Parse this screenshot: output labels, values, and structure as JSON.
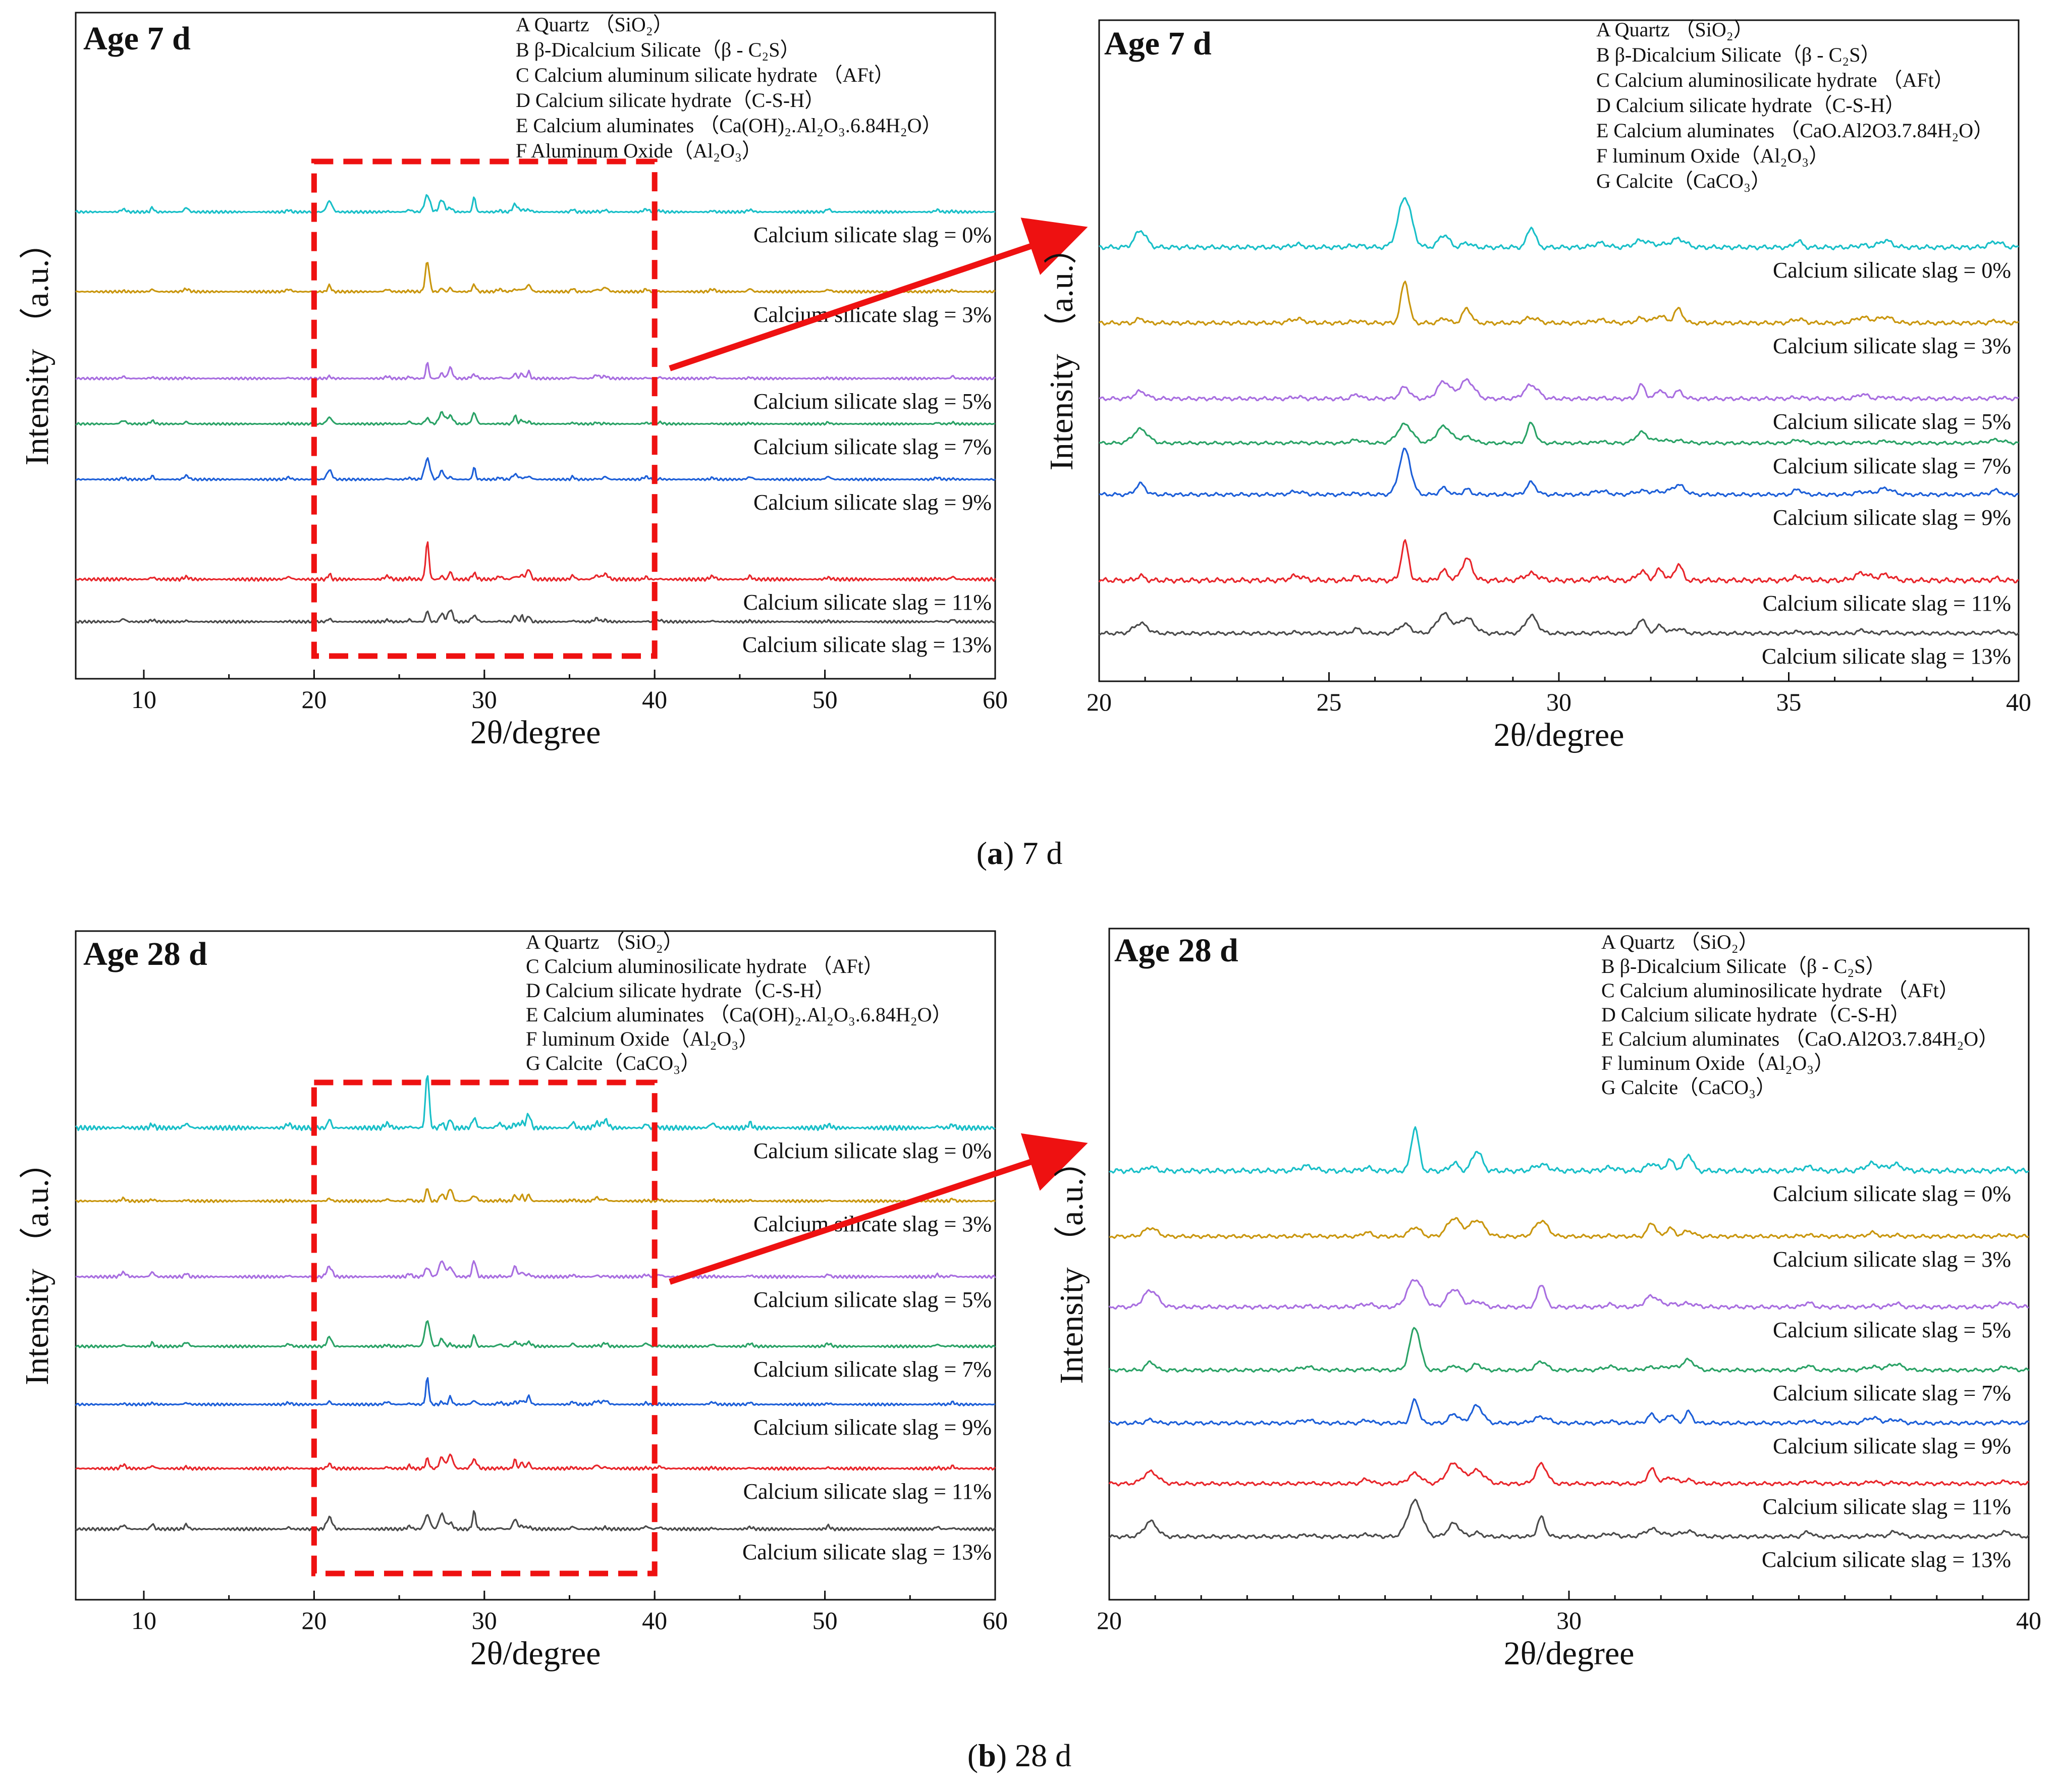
{
  "colors": {
    "series": [
      "#19bfc8",
      "#c9960e",
      "#a86ee0",
      "#2aa266",
      "#1d5fd8",
      "#e8262b",
      "#4a4a4a"
    ],
    "zoom_box": "#ee1111",
    "arrow": "#ee1111"
  },
  "captions": {
    "a_label": "(a)",
    "a_letter": "a",
    "a_text": "7 d",
    "b_label": "(b)",
    "b_letter": "b",
    "b_text": "28 d"
  },
  "chart_data": [
    {
      "id": "7d-full",
      "type": "line",
      "title": "Age 7 d",
      "xlabel": "2θ/degree",
      "ylabel": "Intensity （a.u.）",
      "xlim": [
        6,
        60
      ],
      "xticks": [
        "10",
        "20",
        "30",
        "40",
        "50",
        "60"
      ],
      "legend": [
        "A Quartz （SiO₂）",
        "B β-Dicalcium Silicate（β - C₂S）",
        "C Calcium aluminum silicate hydrate （AFt）",
        "D Calcium silicate hydrate（C-S-H）",
        "E Calcium aluminates （Ca(OH)₂.Al₂O₃.6.84H₂O）",
        "F Aluminum Oxide（Al₂O₃）"
      ],
      "series": [
        {
          "name": "Calcium silicate slag = 0%"
        },
        {
          "name": "Calcium silicate slag = 3%"
        },
        {
          "name": "Calcium silicate slag = 5%"
        },
        {
          "name": "Calcium silicate slag = 7%"
        },
        {
          "name": "Calcium silicate slag = 9%"
        },
        {
          "name": "Calcium silicate slag = 11%"
        },
        {
          "name": "Calcium silicate slag = 13%"
        }
      ],
      "zoom_range": [
        20,
        40
      ]
    },
    {
      "id": "7d-zoom",
      "type": "line",
      "title": "Age 7 d",
      "xlabel": "2θ/degree",
      "ylabel": "Intensity （a.u.）",
      "xlim": [
        20,
        40
      ],
      "xticks": [
        "20",
        "25",
        "30",
        "35",
        "40"
      ],
      "legend": [
        "A Quartz （SiO₂）",
        "B β-Dicalcium Silicate（β - C₂S）",
        "C Calcium aluminosilicate hydrate （AFt）",
        "D Calcium silicate hydrate（C-S-H）",
        "E Calcium aluminates （CaO.Al2O3.7.84H₂O）",
        "F luminum Oxide（Al₂O₃）",
        "G Calcite（CaCO₃）"
      ],
      "series": [
        {
          "name": "Calcium silicate slag = 0%"
        },
        {
          "name": "Calcium silicate slag = 3%"
        },
        {
          "name": "Calcium silicate slag = 5%"
        },
        {
          "name": "Calcium silicate slag = 7%"
        },
        {
          "name": "Calcium silicate slag = 9%"
        },
        {
          "name": "Calcium silicate slag = 11%"
        },
        {
          "name": "Calcium silicate slag = 13%"
        }
      ]
    },
    {
      "id": "28d-full",
      "type": "line",
      "title": "Age 28 d",
      "xlabel": "2θ/degree",
      "ylabel": "Intensity （a.u.）",
      "xlim": [
        6,
        60
      ],
      "xticks": [
        "10",
        "20",
        "30",
        "40",
        "50",
        "60"
      ],
      "legend": [
        "A Quartz （SiO₂）",
        "C Calcium aluminosilicate hydrate （AFt）",
        "D Calcium silicate hydrate（C-S-H）",
        "E Calcium aluminates （Ca(OH)₂.Al₂O₃.6.84H₂O）",
        "F luminum Oxide（Al₂O₃）",
        "G Calcite（CaCO₃）"
      ],
      "series": [
        {
          "name": "Calcium silicate slag = 0%"
        },
        {
          "name": "Calcium silicate slag = 3%"
        },
        {
          "name": "Calcium silicate slag = 5%"
        },
        {
          "name": "Calcium silicate slag = 7%"
        },
        {
          "name": "Calcium silicate slag = 9%"
        },
        {
          "name": "Calcium silicate slag = 11%"
        },
        {
          "name": "Calcium silicate slag = 13%"
        }
      ],
      "zoom_range": [
        20,
        40
      ]
    },
    {
      "id": "28d-zoom",
      "type": "line",
      "title": "Age 28 d",
      "xlabel": "2θ/degree",
      "ylabel": "Intensity （a.u.）",
      "xlim": [
        20,
        40
      ],
      "xticks": [
        "20",
        "30",
        "40"
      ],
      "legend": [
        "A Quartz （SiO₂）",
        "B β-Dicalcium Silicate（β - C₂S）",
        "C Calcium aluminosilicate hydrate （AFt）",
        "D Calcium silicate hydrate（C-S-H）",
        "E Calcium aluminates （CaO.Al2O3.7.84H₂O）",
        "F luminum Oxide（Al₂O₃）",
        "G Calcite（CaCO₃）"
      ],
      "series": [
        {
          "name": "Calcium silicate slag = 0%"
        },
        {
          "name": "Calcium silicate slag = 3%"
        },
        {
          "name": "Calcium silicate slag = 5%"
        },
        {
          "name": "Calcium silicate slag = 7%"
        },
        {
          "name": "Calcium silicate slag = 9%"
        },
        {
          "name": "Calcium silicate slag = 11%"
        },
        {
          "name": "Calcium silicate slag = 13%"
        }
      ]
    }
  ]
}
